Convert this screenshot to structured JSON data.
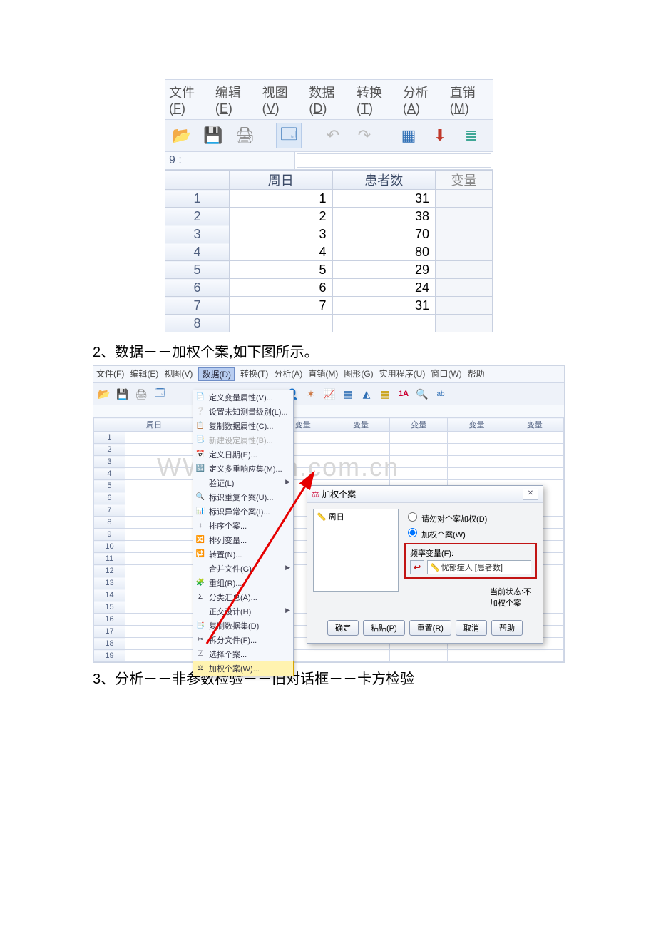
{
  "img1": {
    "menubar": [
      {
        "label": "文件(",
        "u": "F",
        "after": ")"
      },
      {
        "label": "编辑(",
        "u": "E",
        "after": ")"
      },
      {
        "label": "视图(",
        "u": "V",
        "after": ")"
      },
      {
        "label": "数据(",
        "u": "D",
        "after": ")"
      },
      {
        "label": "转换(",
        "u": "T",
        "after": ")"
      },
      {
        "label": "分析(",
        "u": "A",
        "after": ")"
      },
      {
        "label": "直销(",
        "u": "M",
        "after": ")"
      }
    ],
    "toolbar_icons": [
      "open",
      "save",
      "print",
      "",
      "data",
      "",
      "undo",
      "redo",
      "",
      "goto",
      "down",
      "list"
    ],
    "address": "9 :",
    "columns": [
      "周日",
      "患者数",
      "变量"
    ],
    "rows": [
      {
        "n": "1",
        "a": "1",
        "b": "31"
      },
      {
        "n": "2",
        "a": "2",
        "b": "38"
      },
      {
        "n": "3",
        "a": "3",
        "b": "70"
      },
      {
        "n": "4",
        "a": "4",
        "b": "80"
      },
      {
        "n": "5",
        "a": "5",
        "b": "29"
      },
      {
        "n": "6",
        "a": "6",
        "b": "24"
      },
      {
        "n": "7",
        "a": "7",
        "b": "31"
      },
      {
        "n": "8",
        "a": "",
        "b": ""
      }
    ],
    "colors": {
      "row_header_bg": "#eef2f9",
      "border": "#c8d0e0",
      "menu_bg": "#f4f7fc"
    },
    "font_size_pt": 14
  },
  "caption2": "2、数据－－加权个案,如下图所示。",
  "img2": {
    "menubar": [
      "文件(F)",
      "编辑(E)",
      "视图(V)",
      "数据(D)",
      "转换(T)",
      "分析(A)",
      "直销(M)",
      "图形(G)",
      "实用程序(U)",
      "窗口(W)",
      "帮助"
    ],
    "menubar_selected_index": 3,
    "toolbar_icons_left": [
      "open",
      "save",
      "print",
      "data"
    ],
    "toolbar_icons_right": [
      "tbl",
      "person",
      "star",
      "chart",
      "grid",
      "tri",
      "grid2",
      "oneA",
      "find",
      "ab"
    ],
    "col_headers": [
      "",
      "周日",
      "量",
      "变量",
      "变量",
      "变量",
      "变量",
      "变量",
      "变量"
    ],
    "row_count": 19,
    "colors": {
      "header_bg": "#eef2f9",
      "border": "#d0d8e8",
      "menu_sel_bg": "#b8cdf0"
    }
  },
  "dropdown": {
    "items": [
      {
        "icon": "📄",
        "label": "定义变量属性(V)...",
        "arrow": false
      },
      {
        "icon": "❔",
        "label": "设置未知测量级别(L)...",
        "arrow": false
      },
      {
        "icon": "📋",
        "label": "复制数据属性(C)...",
        "arrow": false
      },
      {
        "icon": "📑",
        "label": "新建设定属性(B)...",
        "arrow": false,
        "disabled": true
      },
      {
        "icon": "📅",
        "label": "定义日期(E)...",
        "arrow": false
      },
      {
        "icon": "🔢",
        "label": "定义多重响应集(M)...",
        "arrow": false
      },
      {
        "icon": "",
        "label": "验证(L)",
        "arrow": true
      },
      {
        "icon": "🔍",
        "label": "标识重复个案(U)...",
        "arrow": false
      },
      {
        "icon": "📊",
        "label": "标识异常个案(I)...",
        "arrow": false
      },
      {
        "icon": "↕",
        "label": "排序个案...",
        "arrow": false
      },
      {
        "icon": "🔀",
        "label": "排列变量...",
        "arrow": false
      },
      {
        "icon": "🔁",
        "label": "转置(N)...",
        "arrow": false
      },
      {
        "icon": "",
        "label": "合并文件(G)",
        "arrow": true
      },
      {
        "icon": "🧩",
        "label": "重组(R)...",
        "arrow": false
      },
      {
        "icon": "Σ",
        "label": "分类汇总(A)...",
        "arrow": false
      },
      {
        "icon": "",
        "label": "正交设计(H)",
        "arrow": true
      },
      {
        "icon": "📑",
        "label": "复制数据集(D)",
        "arrow": false
      },
      {
        "icon": "✂",
        "label": "拆分文件(F)...",
        "arrow": false
      },
      {
        "icon": "☑",
        "label": "选择个案...",
        "arrow": false
      },
      {
        "icon": "⚖",
        "label": "加权个案(W)...",
        "arrow": false,
        "highlight": true
      }
    ],
    "highlight_color": "#fff3b0",
    "highlight_border": "#d6a400"
  },
  "dialog": {
    "title_icon": "⚖",
    "title": "加权个案",
    "radio1": "请勿对个案加权(D)",
    "radio2": "加权个案(W)",
    "radio_selected": 2,
    "list_item": "周日",
    "freq_label": "频率变量(F):",
    "target_value": "忧郁症人 [患者数]",
    "status": "当前状态:不加权个案",
    "buttons": [
      "确定",
      "粘贴(P)",
      "重置(R)",
      "取消",
      "帮助"
    ],
    "fieldset_border_color": "#c21414",
    "move_button_glyph": "↩",
    "close_glyph": "✕"
  },
  "watermark_text": "WWW.yixin.com.cn",
  "caption3": "3、分析－－非参数检验－－旧对话框－－卡方检验",
  "arrow_color": "#e60000"
}
